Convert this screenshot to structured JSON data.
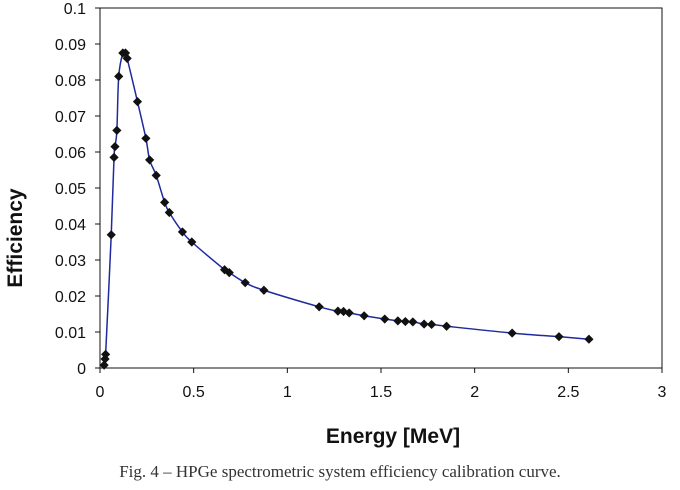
{
  "caption": "Fig. 4 – HPGe spectrometric system efficiency calibration curve.",
  "colors": {
    "curve": "#1f2a9c",
    "marker": "#111111",
    "axis": "#111111",
    "background": "#ffffff"
  },
  "chart_data": {
    "type": "scatter",
    "title": "",
    "xlabel": "Energy [MeV]",
    "ylabel": "Efficiency",
    "xlim": [
      0,
      3
    ],
    "ylim": [
      0,
      0.1
    ],
    "grid": false,
    "legend": "none",
    "x_ticks": [
      "0",
      "0.5",
      "1",
      "1.5",
      "2",
      "2.5",
      "3"
    ],
    "y_ticks": [
      "0",
      "0.01",
      "0.02",
      "0.03",
      "0.04",
      "0.05",
      "0.06",
      "0.07",
      "0.08",
      "0.09",
      "0.1"
    ],
    "marker": "diamond",
    "fit_line": true,
    "points": {
      "x": [
        0.022,
        0.027,
        0.03,
        0.06,
        0.075,
        0.08,
        0.09,
        0.1,
        0.122,
        0.136,
        0.145,
        0.2,
        0.245,
        0.265,
        0.3,
        0.345,
        0.37,
        0.44,
        0.49,
        0.665,
        0.69,
        0.775,
        0.875,
        1.17,
        1.27,
        1.3,
        1.33,
        1.41,
        1.52,
        1.59,
        1.63,
        1.67,
        1.73,
        1.77,
        1.85,
        2.2,
        2.45,
        2.61
      ],
      "y": [
        0.0008,
        0.0025,
        0.0038,
        0.037,
        0.0585,
        0.0615,
        0.066,
        0.081,
        0.0875,
        0.0875,
        0.086,
        0.074,
        0.0638,
        0.0578,
        0.0535,
        0.046,
        0.0432,
        0.0378,
        0.035,
        0.0273,
        0.0265,
        0.0237,
        0.0216,
        0.017,
        0.0158,
        0.0157,
        0.0153,
        0.0145,
        0.0136,
        0.0131,
        0.0129,
        0.0128,
        0.0122,
        0.0121,
        0.0116,
        0.0097,
        0.0087,
        0.008
      ]
    }
  }
}
